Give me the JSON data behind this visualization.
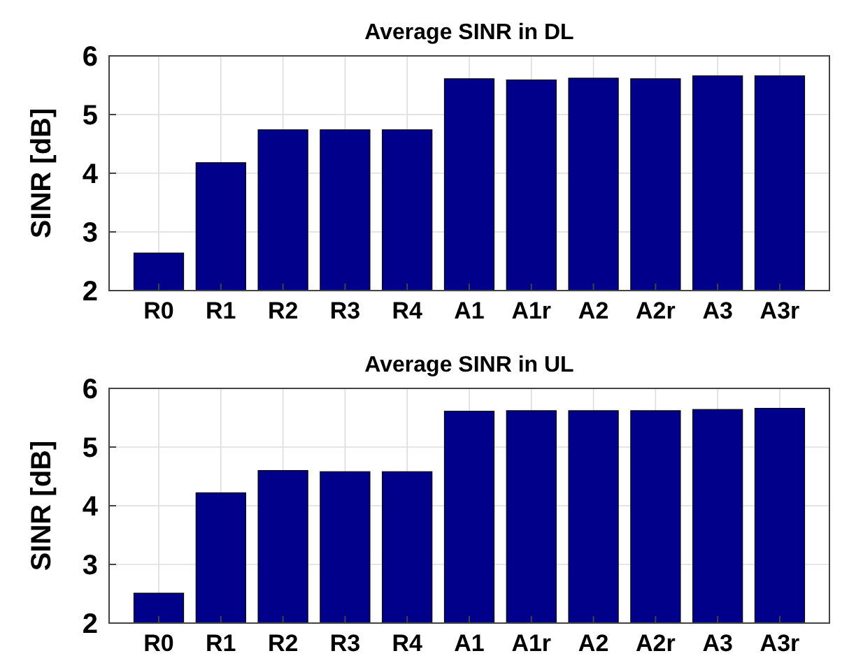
{
  "chart_data": [
    {
      "type": "bar",
      "title": "Average SINR in DL",
      "ylabel": "SINR [dB]",
      "categories": [
        "R0",
        "R1",
        "R2",
        "R3",
        "R4",
        "A1",
        "A1r",
        "A2",
        "A2r",
        "A3",
        "A3r"
      ],
      "values": [
        2.64,
        4.18,
        4.74,
        4.74,
        4.74,
        5.61,
        5.59,
        5.62,
        5.61,
        5.66,
        5.66
      ],
      "color": "#00008b",
      "ylim": [
        2,
        6
      ],
      "yticks": [
        2,
        3,
        4,
        5,
        6
      ],
      "grid": true
    },
    {
      "type": "bar",
      "title": "Average SINR in UL",
      "ylabel": "SINR [dB]",
      "categories": [
        "R0",
        "R1",
        "R2",
        "R3",
        "R4",
        "A1",
        "A1r",
        "A2",
        "A2r",
        "A3",
        "A3r"
      ],
      "values": [
        2.51,
        4.22,
        4.6,
        4.58,
        4.58,
        5.61,
        5.62,
        5.62,
        5.62,
        5.64,
        5.66
      ],
      "color": "#00008b",
      "ylim": [
        2,
        6
      ],
      "yticks": [
        2,
        3,
        4,
        5,
        6
      ],
      "grid": true
    }
  ]
}
